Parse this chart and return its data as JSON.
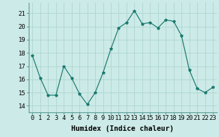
{
  "x": [
    0,
    1,
    2,
    3,
    4,
    5,
    6,
    7,
    8,
    9,
    10,
    11,
    12,
    13,
    14,
    15,
    16,
    17,
    18,
    19,
    20,
    21,
    22,
    23
  ],
  "y": [
    17.8,
    16.1,
    14.8,
    14.8,
    17.0,
    16.1,
    14.9,
    14.1,
    15.0,
    16.5,
    18.3,
    19.9,
    20.3,
    21.2,
    20.2,
    20.3,
    19.9,
    20.5,
    20.4,
    19.3,
    16.7,
    15.3,
    15.0,
    15.4
  ],
  "line_color": "#1a7a6e",
  "marker": "*",
  "marker_size": 3,
  "bg_color": "#cceae7",
  "grid_color": "#b0d8d4",
  "xlabel": "Humidex (Indice chaleur)",
  "ylabel_ticks": [
    14,
    15,
    16,
    17,
    18,
    19,
    20,
    21
  ],
  "xtick_labels": [
    "0",
    "1",
    "2",
    "3",
    "4",
    "5",
    "6",
    "7",
    "8",
    "9",
    "10",
    "11",
    "12",
    "13",
    "14",
    "15",
    "16",
    "17",
    "18",
    "19",
    "20",
    "21",
    "22",
    "23"
  ],
  "ylim": [
    13.5,
    21.8
  ],
  "xlim": [
    -0.5,
    23.5
  ],
  "xlabel_fontsize": 7.5,
  "tick_fontsize": 6.5
}
